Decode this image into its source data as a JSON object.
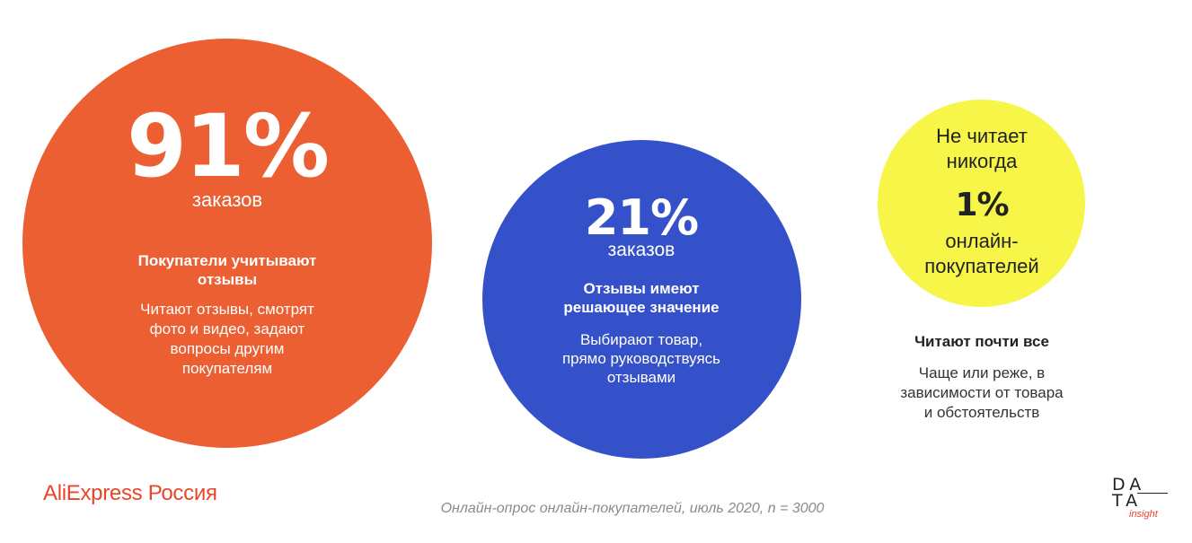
{
  "stats": {
    "orange": {
      "value": "91%",
      "unit": "заказов",
      "heading_line1": "Покупатели учитывают",
      "heading_line2": "отзывы",
      "desc_lines": [
        "Читают отзывы, смотрят",
        "фото и видео, задают",
        "вопросы другим",
        "покупателям"
      ],
      "color": "#ec5f33"
    },
    "blue": {
      "value": "21%",
      "unit": "заказов",
      "heading_line1": "Отзывы имеют",
      "heading_line2": "решающее значение",
      "desc_lines": [
        "Выбирают товар,",
        "прямо руководствуясь",
        "отзывами"
      ],
      "color": "#3451c9"
    },
    "yellow": {
      "title_line1": "Не читает",
      "title_line2": "никогда",
      "value": "1%",
      "unit_line1": "онлайн-",
      "unit_line2": "покупателей",
      "color": "#f6f548"
    }
  },
  "side_note": {
    "heading": "Читают почти все",
    "desc_lines": [
      "Чаще или реже, в",
      "зависимости от товара",
      "и обстоятельств"
    ]
  },
  "footer": {
    "brand": "AliExpress Россия",
    "source": "Онлайн-опрос онлайн-покупателей, июль 2020, n = 3000",
    "logo_line1": "DA",
    "logo_line2": "TA",
    "logo_small": "insight"
  }
}
